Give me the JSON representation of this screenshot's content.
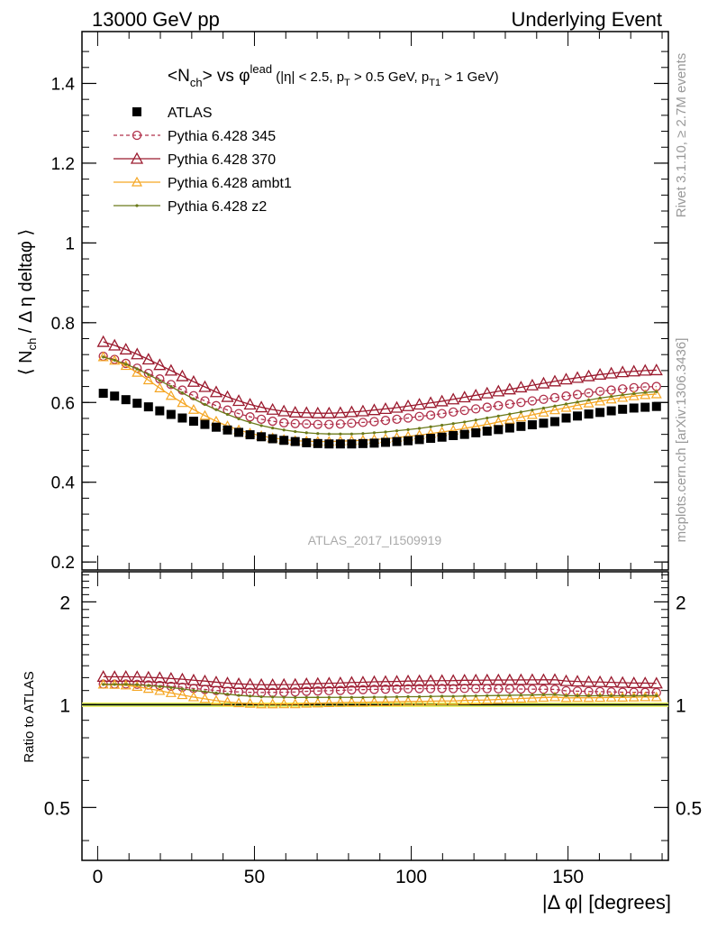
{
  "header": {
    "left": "13000 GeV pp",
    "right": "Underlying Event"
  },
  "side_labels": {
    "rivet": "Rivet 3.1.10, ≥ 2.7M events",
    "mcplots": "mcplots.cern.ch [arXiv:1306.3436]"
  },
  "watermark": "ATLAS_2017_I1509919",
  "colors": {
    "atlas": "#000000",
    "p345": "#b0304a",
    "p370": "#9b1a2e",
    "ambt1": "#f5a623",
    "z2": "#6b7a1a",
    "band_outer": "#f0f060",
    "band_inner": "#5cc85c"
  },
  "chart_data": [
    {
      "type": "scatter",
      "title": "<N_ch> vs φ^lead (|η| < 2.5, p_T > 0.5 GeV, p_T1 > 1 GeV)",
      "ylabel": "⟨ N_ch / Δη deltaφ ⟩",
      "xlim": [
        -5,
        182
      ],
      "ylim": [
        0.18,
        1.53
      ],
      "ytick_labels": [
        "0.2",
        "0.4",
        "0.6",
        "0.8",
        "1",
        "1.2",
        "1.4"
      ],
      "x": [
        1.8,
        5.4,
        9,
        12.6,
        16.2,
        19.8,
        23.4,
        27,
        30.6,
        34.2,
        37.8,
        41.4,
        45,
        48.6,
        52.2,
        55.8,
        59.4,
        63,
        66.6,
        70.2,
        73.8,
        77.4,
        81,
        84.6,
        88.2,
        91.8,
        95.4,
        99,
        102.6,
        106.2,
        109.8,
        113.4,
        117,
        120.6,
        124.2,
        127.8,
        131.4,
        135,
        138.6,
        142.2,
        145.8,
        149.4,
        153,
        156.6,
        160.2,
        163.8,
        167.4,
        171,
        174.6,
        178.2
      ],
      "series": [
        {
          "name": "ATLAS",
          "values": [
            0.623,
            0.616,
            0.607,
            0.598,
            0.589,
            0.579,
            0.57,
            0.561,
            0.553,
            0.545,
            0.538,
            0.531,
            0.525,
            0.519,
            0.514,
            0.509,
            0.505,
            0.502,
            0.499,
            0.497,
            0.496,
            0.496,
            0.496,
            0.497,
            0.498,
            0.5,
            0.502,
            0.504,
            0.507,
            0.51,
            0.513,
            0.517,
            0.52,
            0.524,
            0.528,
            0.532,
            0.536,
            0.54,
            0.544,
            0.548,
            0.552,
            0.561,
            0.566,
            0.571,
            0.575,
            0.579,
            0.583,
            0.586,
            0.588,
            0.59
          ]
        },
        {
          "name": "Pythia 6.428 345",
          "values": [
            0.716,
            0.708,
            0.698,
            0.686,
            0.673,
            0.659,
            0.645,
            0.631,
            0.617,
            0.604,
            0.592,
            0.581,
            0.572,
            0.564,
            0.558,
            0.553,
            0.549,
            0.547,
            0.546,
            0.545,
            0.545,
            0.546,
            0.548,
            0.55,
            0.552,
            0.555,
            0.558,
            0.561,
            0.565,
            0.568,
            0.572,
            0.576,
            0.58,
            0.584,
            0.588,
            0.592,
            0.596,
            0.6,
            0.604,
            0.608,
            0.612,
            0.616,
            0.62,
            0.624,
            0.628,
            0.631,
            0.634,
            0.637,
            0.639,
            0.64
          ]
        },
        {
          "name": "Pythia 6.428 370",
          "values": [
            0.752,
            0.743,
            0.733,
            0.721,
            0.708,
            0.694,
            0.68,
            0.666,
            0.652,
            0.639,
            0.626,
            0.614,
            0.604,
            0.595,
            0.588,
            0.582,
            0.578,
            0.575,
            0.574,
            0.573,
            0.573,
            0.574,
            0.576,
            0.578,
            0.581,
            0.584,
            0.587,
            0.591,
            0.595,
            0.599,
            0.603,
            0.608,
            0.613,
            0.618,
            0.623,
            0.628,
            0.633,
            0.638,
            0.643,
            0.648,
            0.653,
            0.658,
            0.662,
            0.666,
            0.67,
            0.673,
            0.676,
            0.678,
            0.68,
            0.681
          ]
        },
        {
          "name": "Pythia 6.428 ambt1",
          "values": [
            0.714,
            0.705,
            0.692,
            0.675,
            0.656,
            0.636,
            0.617,
            0.599,
            0.582,
            0.567,
            0.553,
            0.541,
            0.531,
            0.523,
            0.516,
            0.511,
            0.507,
            0.504,
            0.503,
            0.502,
            0.502,
            0.503,
            0.504,
            0.505,
            0.507,
            0.509,
            0.512,
            0.515,
            0.518,
            0.522,
            0.526,
            0.53,
            0.535,
            0.54,
            0.545,
            0.551,
            0.557,
            0.563,
            0.569,
            0.575,
            0.581,
            0.587,
            0.593,
            0.598,
            0.603,
            0.608,
            0.612,
            0.616,
            0.619,
            0.621
          ]
        },
        {
          "name": "Pythia 6.428 z2",
          "values": [
            0.714,
            0.706,
            0.696,
            0.684,
            0.67,
            0.655,
            0.64,
            0.624,
            0.609,
            0.595,
            0.582,
            0.57,
            0.559,
            0.55,
            0.542,
            0.536,
            0.531,
            0.527,
            0.524,
            0.522,
            0.521,
            0.521,
            0.521,
            0.522,
            0.524,
            0.526,
            0.529,
            0.532,
            0.535,
            0.539,
            0.543,
            0.547,
            0.551,
            0.556,
            0.561,
            0.566,
            0.571,
            0.576,
            0.581,
            0.586,
            0.591,
            0.596,
            0.601,
            0.606,
            0.611,
            0.615,
            0.619,
            0.622,
            0.625,
            0.627
          ]
        }
      ]
    },
    {
      "type": "line",
      "ylabel": "Ratio to ATLAS",
      "xlabel": "|Δ φ| [degrees]",
      "xlim": [
        -5,
        182
      ],
      "xtick_labels": [
        "0",
        "50",
        "100",
        "150"
      ],
      "ylim_log": [
        0.35,
        2.45
      ],
      "ytick_labels": [
        "0.5",
        "1",
        "2"
      ],
      "band": {
        "outer": 0.015,
        "inner": 0.006
      }
    }
  ]
}
